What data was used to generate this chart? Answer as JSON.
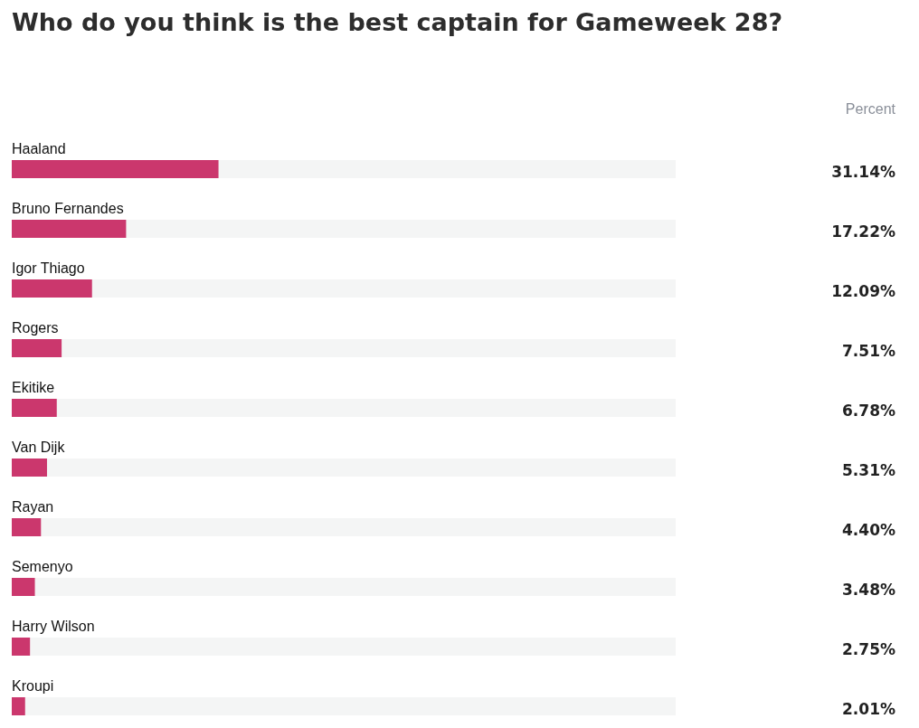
{
  "chart_data": {
    "type": "bar",
    "orientation": "horizontal",
    "title": "Who do you think is the best captain for Gameweek 28?",
    "categories": [
      "Haaland",
      "Bruno Fernandes",
      "Igor Thiago",
      "Rogers",
      "Ekitike",
      "Van Dijk",
      "Rayan",
      "Semenyo",
      "Harry Wilson",
      "Kroupi"
    ],
    "values": [
      31.14,
      17.22,
      12.09,
      7.51,
      6.78,
      5.31,
      4.4,
      3.48,
      2.75,
      2.01
    ],
    "value_labels": [
      "31.14%",
      "17.22%",
      "12.09%",
      "7.51%",
      "6.78%",
      "5.31%",
      "4.40%",
      "3.48%",
      "2.75%",
      "2.01%"
    ],
    "color": "#cb376d",
    "xlim": [
      0,
      100
    ],
    "annotations": [
      "Percent"
    ]
  }
}
